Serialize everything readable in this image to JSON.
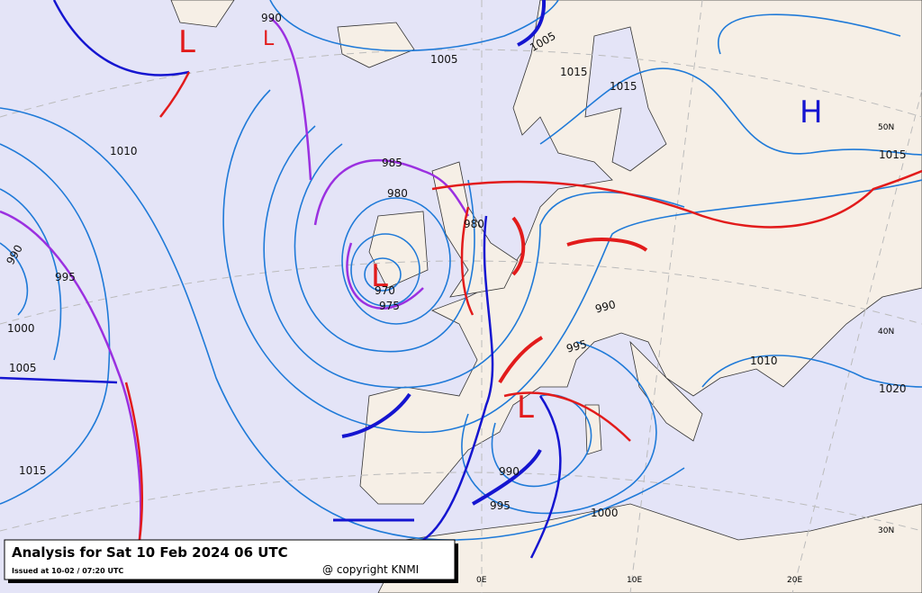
{
  "header": {
    "title": "Analysis for Sat 10 Feb 2024 06 UTC",
    "issued": "Issued at 10-02 / 07:20 UTC",
    "copyright": "@ copyright KNMI"
  },
  "pressure_centers": [
    {
      "label": "L"
    },
    {
      "label": "L"
    },
    {
      "label": "L"
    },
    {
      "label": "L"
    },
    {
      "label": "H"
    }
  ],
  "isobar_labels": [
    "990",
    "1005",
    "1005",
    "1015",
    "1015",
    "1010",
    "985",
    "980",
    "980",
    "970",
    "975",
    "990",
    "995",
    "1000",
    "1005",
    "1015",
    "990",
    "995",
    "1010",
    "1020",
    "1015",
    "990",
    "995",
    "1000"
  ],
  "graticule_labels": [
    "50N",
    "40N",
    "30N",
    "0E",
    "10E",
    "20E"
  ]
}
